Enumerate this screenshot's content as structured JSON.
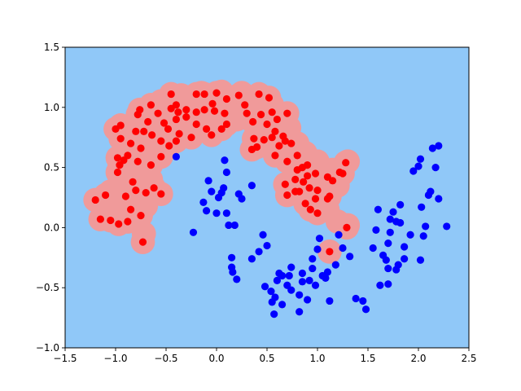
{
  "chart_data": {
    "type": "scatter",
    "title": "",
    "xlabel": "",
    "ylabel": "",
    "xlim": [
      -1.5,
      2.5
    ],
    "ylim": [
      -1.0,
      1.5
    ],
    "grid": false,
    "x_ticks": [
      "−1.5",
      "−1.0",
      "−0.5",
      "0.0",
      "0.5",
      "1.0",
      "1.5",
      "2.0",
      "2.5"
    ],
    "y_ticks": [
      "−1.0",
      "−0.5",
      "0.0",
      "0.5",
      "1.0",
      "1.5"
    ],
    "x_tick_values": [
      -1.5,
      -1.0,
      -0.5,
      0.0,
      0.5,
      1.0,
      1.5,
      2.0,
      2.5
    ],
    "y_tick_values": [
      -1.0,
      -0.5,
      0.0,
      0.5,
      1.0,
      1.5
    ],
    "colors": {
      "background_region": "#90c8f8",
      "class_region": "#f09a9a",
      "class_0": "#ff0000",
      "class_1": "#0000ff"
    },
    "series": [
      {
        "color": "#ff0000",
        "points": [
          [
            -1.2,
            0.23
          ],
          [
            -1.1,
            0.27
          ],
          [
            -1.15,
            0.07
          ],
          [
            -1.05,
            0.06
          ],
          [
            -0.97,
            0.03
          ],
          [
            -0.88,
            0.05
          ],
          [
            -0.85,
            0.15
          ],
          [
            -0.75,
            0.1
          ],
          [
            -0.9,
            0.26
          ],
          [
            -0.8,
            0.31
          ],
          [
            -0.7,
            0.29
          ],
          [
            -0.62,
            0.33
          ],
          [
            -0.55,
            0.28
          ],
          [
            -0.73,
            -0.12
          ],
          [
            -0.83,
            0.38
          ],
          [
            -0.98,
            0.46
          ],
          [
            -0.96,
            0.52
          ],
          [
            -0.92,
            0.56
          ],
          [
            -0.98,
            0.58
          ],
          [
            -0.88,
            0.6
          ],
          [
            -0.78,
            0.55
          ],
          [
            -0.65,
            0.52
          ],
          [
            -0.55,
            0.59
          ],
          [
            -0.75,
            0.66
          ],
          [
            -0.85,
            0.7
          ],
          [
            -0.95,
            0.74
          ],
          [
            -1.0,
            0.82
          ],
          [
            -0.95,
            0.85
          ],
          [
            -0.8,
            0.8
          ],
          [
            -0.72,
            0.8
          ],
          [
            -0.64,
            0.77
          ],
          [
            -0.55,
            0.72
          ],
          [
            -0.47,
            0.68
          ],
          [
            -0.4,
            0.72
          ],
          [
            -0.37,
            0.78
          ],
          [
            -0.25,
            0.75
          ],
          [
            -0.2,
            0.86
          ],
          [
            -0.1,
            0.82
          ],
          [
            -0.05,
            0.77
          ],
          [
            0.05,
            0.82
          ],
          [
            0.1,
            0.86
          ],
          [
            -0.48,
            0.82
          ],
          [
            -0.52,
            0.87
          ],
          [
            -0.4,
            0.9
          ],
          [
            -0.3,
            0.92
          ],
          [
            -0.38,
            0.96
          ],
          [
            -0.45,
            0.99
          ],
          [
            -0.58,
            0.95
          ],
          [
            -0.68,
            0.88
          ],
          [
            -0.78,
            0.94
          ],
          [
            -0.65,
            1.02
          ],
          [
            -0.76,
            0.98
          ],
          [
            -0.45,
            1.11
          ],
          [
            -0.4,
            1.02
          ],
          [
            -0.3,
            0.98
          ],
          [
            -0.2,
            0.96
          ],
          [
            -0.12,
            0.98
          ],
          [
            -0.04,
            1.03
          ],
          [
            -0.02,
            0.97
          ],
          [
            0.08,
            0.95
          ],
          [
            -0.2,
            1.11
          ],
          [
            -0.12,
            1.11
          ],
          [
            0.0,
            1.12
          ],
          [
            0.1,
            1.07
          ],
          [
            0.22,
            1.1
          ],
          [
            0.28,
            1.02
          ],
          [
            0.3,
            0.95
          ],
          [
            0.36,
            0.88
          ],
          [
            0.44,
            0.94
          ],
          [
            0.5,
            0.86
          ],
          [
            0.55,
            0.96
          ],
          [
            0.52,
            1.08
          ],
          [
            0.42,
            1.11
          ],
          [
            0.6,
            0.9
          ],
          [
            0.7,
            0.95
          ],
          [
            0.58,
            0.8
          ],
          [
            0.66,
            0.76
          ],
          [
            0.68,
            0.72
          ],
          [
            0.74,
            0.7
          ],
          [
            0.62,
            0.68
          ],
          [
            0.55,
            0.75
          ],
          [
            0.47,
            0.73
          ],
          [
            0.37,
            0.74
          ],
          [
            0.4,
            0.67
          ],
          [
            0.35,
            0.65
          ],
          [
            0.58,
            0.6
          ],
          [
            0.7,
            0.55
          ],
          [
            0.8,
            0.6
          ],
          [
            0.85,
            0.5
          ],
          [
            0.9,
            0.52
          ],
          [
            0.8,
            0.48
          ],
          [
            0.78,
            0.4
          ],
          [
            0.68,
            0.36
          ],
          [
            0.7,
            0.27
          ],
          [
            0.78,
            0.3
          ],
          [
            0.86,
            0.38
          ],
          [
            0.9,
            0.43
          ],
          [
            0.98,
            0.45
          ],
          [
            1.1,
            0.42
          ],
          [
            1.15,
            0.39
          ],
          [
            1.22,
            0.46
          ],
          [
            1.28,
            0.54
          ],
          [
            0.92,
            0.33
          ],
          [
            1.0,
            0.31
          ],
          [
            1.12,
            0.26
          ],
          [
            0.88,
            0.2
          ],
          [
            0.98,
            0.24
          ],
          [
            1.0,
            0.12
          ],
          [
            0.93,
            0.15
          ],
          [
            0.82,
            0.3
          ],
          [
            1.1,
            0.24
          ],
          [
            1.25,
            0.45
          ],
          [
            1.29,
            0.0
          ],
          [
            1.12,
            -0.2
          ]
        ]
      },
      {
        "color": "#0000ff",
        "points": [
          [
            -0.4,
            0.59
          ],
          [
            -0.23,
            -0.04
          ],
          [
            -0.1,
            0.14
          ],
          [
            -0.13,
            0.21
          ],
          [
            -0.08,
            0.39
          ],
          [
            -0.05,
            0.3
          ],
          [
            0.0,
            0.12
          ],
          [
            0.02,
            0.25
          ],
          [
            0.05,
            0.29
          ],
          [
            0.07,
            0.33
          ],
          [
            0.08,
            0.56
          ],
          [
            0.1,
            0.46
          ],
          [
            0.1,
            0.12
          ],
          [
            0.12,
            0.02
          ],
          [
            0.18,
            0.02
          ],
          [
            0.22,
            0.28
          ],
          [
            0.25,
            0.24
          ],
          [
            0.35,
            0.35
          ],
          [
            0.15,
            -0.25
          ],
          [
            0.15,
            -0.33
          ],
          [
            0.16,
            -0.37
          ],
          [
            0.2,
            -0.43
          ],
          [
            0.35,
            -0.26
          ],
          [
            0.42,
            -0.2
          ],
          [
            0.46,
            -0.06
          ],
          [
            0.5,
            -0.15
          ],
          [
            0.48,
            -0.49
          ],
          [
            0.54,
            -0.53
          ],
          [
            0.55,
            -0.62
          ],
          [
            0.57,
            -0.72
          ],
          [
            0.58,
            -0.58
          ],
          [
            0.6,
            -0.44
          ],
          [
            0.62,
            -0.38
          ],
          [
            0.65,
            -0.4
          ],
          [
            0.65,
            -0.64
          ],
          [
            0.72,
            -0.4
          ],
          [
            0.74,
            -0.33
          ],
          [
            0.74,
            -0.52
          ],
          [
            0.82,
            -0.56
          ],
          [
            0.82,
            -0.7
          ],
          [
            0.85,
            -0.45
          ],
          [
            0.85,
            -0.38
          ],
          [
            0.9,
            -0.6
          ],
          [
            0.92,
            -0.44
          ],
          [
            0.95,
            -0.34
          ],
          [
            0.95,
            -0.26
          ],
          [
            0.98,
            -0.48
          ],
          [
            1.0,
            -0.18
          ],
          [
            1.02,
            -0.09
          ],
          [
            1.05,
            -0.4
          ],
          [
            1.08,
            -0.42
          ],
          [
            1.1,
            -0.37
          ],
          [
            1.12,
            -0.61
          ],
          [
            1.18,
            -0.31
          ],
          [
            1.21,
            -0.06
          ],
          [
            1.25,
            -0.17
          ],
          [
            1.32,
            -0.24
          ],
          [
            1.38,
            -0.59
          ],
          [
            1.45,
            -0.61
          ],
          [
            1.48,
            -0.68
          ],
          [
            1.55,
            -0.17
          ],
          [
            1.58,
            -0.02
          ],
          [
            1.6,
            0.15
          ],
          [
            1.62,
            -0.48
          ],
          [
            1.65,
            -0.23
          ],
          [
            1.68,
            -0.27
          ],
          [
            1.7,
            -0.34
          ],
          [
            1.7,
            -0.47
          ],
          [
            1.7,
            -0.13
          ],
          [
            1.72,
            0.07
          ],
          [
            1.72,
            -0.04
          ],
          [
            1.75,
            0.13
          ],
          [
            1.78,
            -0.35
          ],
          [
            1.8,
            -0.31
          ],
          [
            1.82,
            0.04
          ],
          [
            1.82,
            0.19
          ],
          [
            1.86,
            -0.26
          ],
          [
            1.95,
            0.47
          ],
          [
            2.0,
            0.51
          ],
          [
            2.02,
            0.57
          ],
          [
            2.02,
            -0.27
          ],
          [
            2.05,
            -0.07
          ],
          [
            2.07,
            0.01
          ],
          [
            2.1,
            0.27
          ],
          [
            2.12,
            0.3
          ],
          [
            2.14,
            0.66
          ],
          [
            2.17,
            0.5
          ],
          [
            2.2,
            0.68
          ],
          [
            2.2,
            0.24
          ],
          [
            2.28,
            0.01
          ],
          [
            2.03,
            0.17
          ],
          [
            1.86,
            -0.16
          ],
          [
            1.78,
            0.05
          ],
          [
            1.92,
            -0.06
          ],
          [
            0.7,
            -0.48
          ]
        ]
      }
    ],
    "decision_region": {
      "class_color": "#f09a9a",
      "radius": 0.12,
      "extra_centers": [
        [
          -1.1,
          0.2
        ],
        [
          -1.0,
          0.12
        ],
        [
          -0.9,
          0.1
        ],
        [
          -0.8,
          0.12
        ],
        [
          -0.7,
          0.18
        ],
        [
          -1.05,
          0.3
        ],
        [
          -0.95,
          0.4
        ],
        [
          -0.9,
          0.65
        ],
        [
          -0.85,
          0.85
        ],
        [
          -0.7,
          0.95
        ],
        [
          -0.55,
          1.05
        ],
        [
          -0.35,
          1.1
        ],
        [
          -0.15,
          1.12
        ],
        [
          0.05,
          1.13
        ],
        [
          0.25,
          1.12
        ],
        [
          0.4,
          1.05
        ],
        [
          0.55,
          1.02
        ],
        [
          0.65,
          0.92
        ],
        [
          0.72,
          0.83
        ],
        [
          0.8,
          0.7
        ],
        [
          0.88,
          0.62
        ],
        [
          1.0,
          0.55
        ],
        [
          1.15,
          0.48
        ],
        [
          1.3,
          0.55
        ],
        [
          1.2,
          0.35
        ],
        [
          1.1,
          0.15
        ],
        [
          1.2,
          0.05
        ],
        [
          1.3,
          0.02
        ],
        [
          0.5,
          0.7
        ],
        [
          0.4,
          0.78
        ],
        [
          0.2,
          0.9
        ],
        [
          -0.1,
          0.9
        ],
        [
          -0.45,
          0.75
        ],
        [
          -0.6,
          0.65
        ],
        [
          -0.75,
          0.45
        ],
        [
          -0.65,
          0.4
        ],
        [
          -0.72,
          -0.05
        ]
      ]
    }
  }
}
